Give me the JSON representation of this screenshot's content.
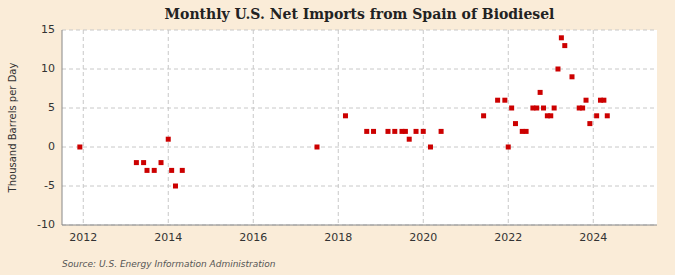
{
  "chart_data": {
    "type": "scatter",
    "title": "Monthly U.S. Net Imports from Spain of Biodiesel",
    "y_label": "Thousand Barrels per Day",
    "source": "Source: U.S. Energy Information Administration",
    "x": [
      2011.92,
      2013.25,
      2013.42,
      2013.5,
      2013.67,
      2013.83,
      2014.0,
      2014.08,
      2014.17,
      2014.33,
      2017.5,
      2018.17,
      2018.67,
      2018.83,
      2019.17,
      2019.33,
      2019.5,
      2019.58,
      2019.67,
      2019.83,
      2020.0,
      2020.17,
      2020.42,
      2021.42,
      2021.75,
      2021.92,
      2022.0,
      2022.08,
      2022.17,
      2022.33,
      2022.42,
      2022.58,
      2022.67,
      2022.75,
      2022.83,
      2022.92,
      2023.0,
      2023.08,
      2023.17,
      2023.25,
      2023.33,
      2023.5,
      2023.67,
      2023.75,
      2023.83,
      2023.92,
      2024.08,
      2024.17,
      2024.25,
      2024.33
    ],
    "values": [
      0,
      -2,
      -2,
      -3,
      -3,
      -2,
      1,
      -3,
      -5,
      -3,
      0,
      4,
      2,
      2,
      2,
      2,
      2,
      2,
      1,
      2,
      2,
      0,
      2,
      4,
      6,
      6,
      0,
      5,
      3,
      2,
      2,
      5,
      5,
      7,
      5,
      4,
      4,
      5,
      10,
      14,
      13,
      9,
      5,
      5,
      6,
      3,
      4,
      6,
      6,
      4
    ],
    "color": "#cc0000",
    "marker": "square",
    "xlim": [
      2011.5,
      2025.5
    ],
    "xticks": [
      2012,
      2014,
      2016,
      2018,
      2020,
      2022,
      2024
    ],
    "ylim": [
      -10,
      15
    ],
    "yticks": [
      -10,
      -5,
      0,
      5,
      10,
      15
    ],
    "grid": true
  }
}
